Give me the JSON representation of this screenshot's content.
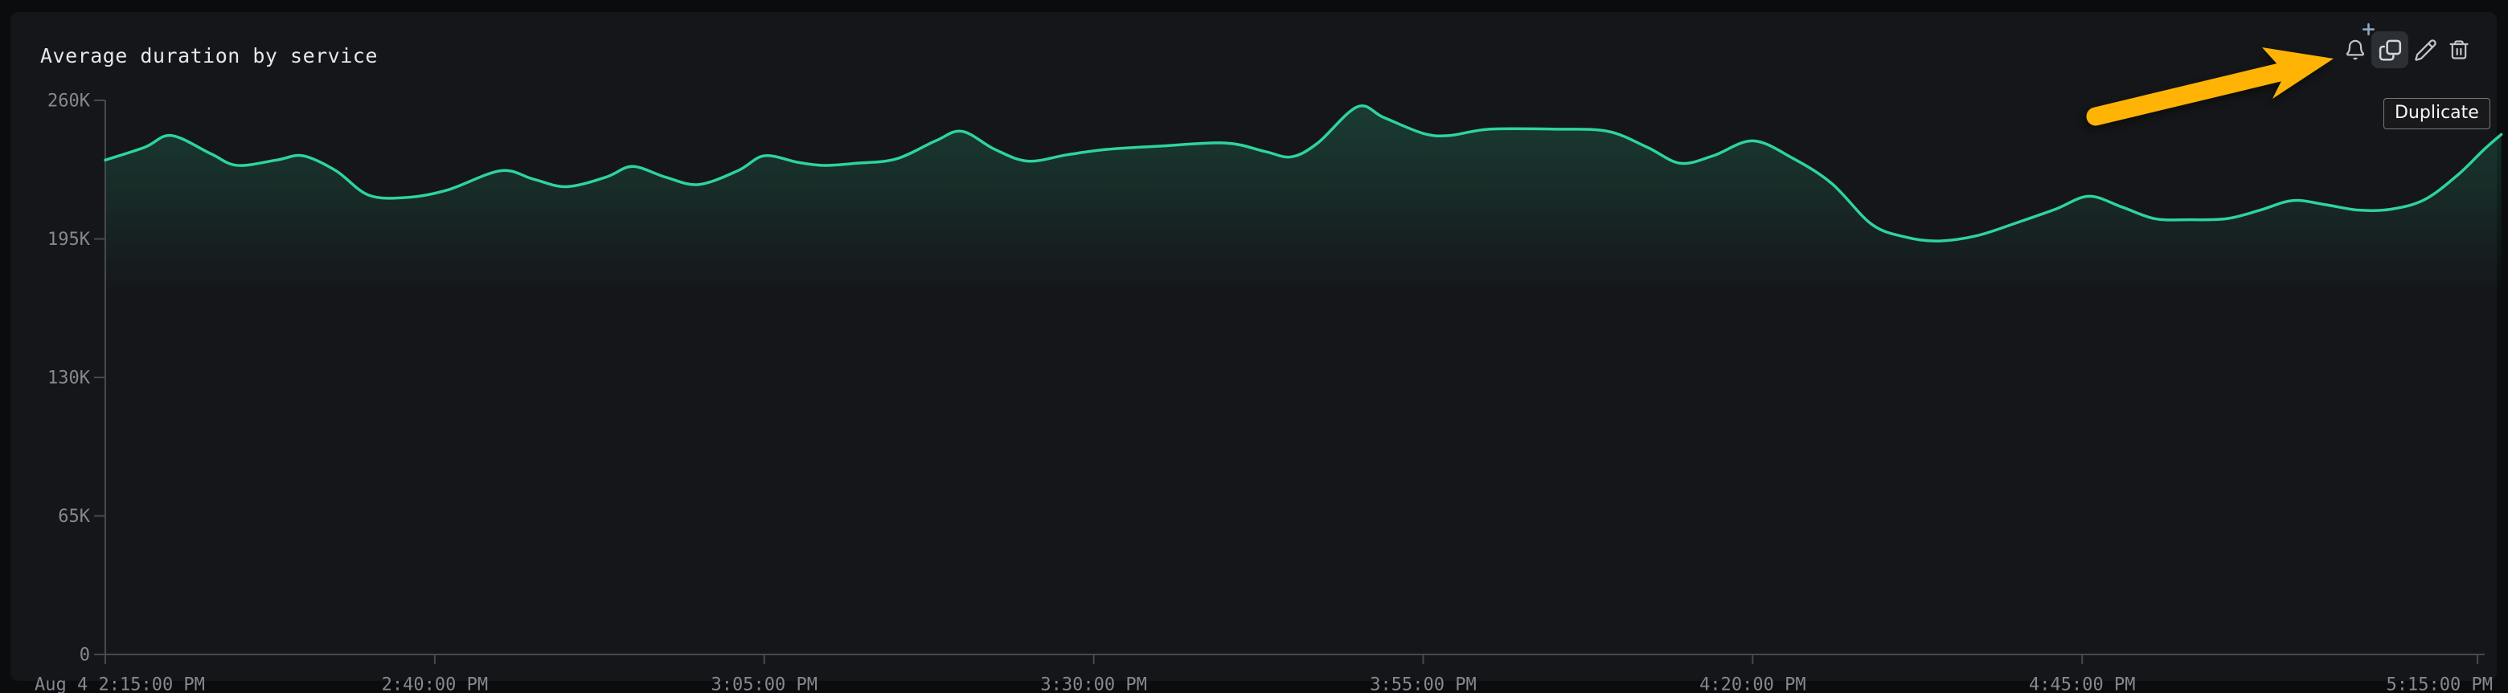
{
  "header": {
    "title": "Average duration by service"
  },
  "toolbar": {
    "tooltip_label": "Duplicate",
    "buttons": [
      "add-monitor",
      "duplicate",
      "edit",
      "delete"
    ],
    "active_button": "duplicate"
  },
  "annotation": {
    "type": "arrow",
    "points_at": "duplicate-button",
    "color": "#ffb405"
  },
  "colors": {
    "outer_background": "#0b0c0e",
    "panel_background": "#151619",
    "line": "#2dd49e",
    "area_fill": "rgba(45,212,158,0.20)",
    "axis": "#46494e",
    "axis_label": "#85888e",
    "title_text": "#e4e6e9",
    "icon": "#bfc4ca",
    "icon_active_bg": "#2c2f34",
    "plus_badge": "#8ba6c6",
    "arrow": "#ffb405",
    "tooltip_bg": "#19191b",
    "tooltip_border": "#77797c"
  },
  "chart_data": {
    "type": "line",
    "title": "Average duration by service",
    "xlabel": "",
    "ylabel": "",
    "grid": false,
    "legend": false,
    "x_unit": "minutes after Aug 4 2:15:00 PM",
    "y_values_in": "thousands",
    "ylim": [
      0,
      260
    ],
    "yticks": [
      {
        "value": 0,
        "label": "0"
      },
      {
        "value": 65,
        "label": "65K"
      },
      {
        "value": 130,
        "label": "130K"
      },
      {
        "value": 195,
        "label": "195K"
      },
      {
        "value": 260,
        "label": "260K"
      }
    ],
    "xticks": [
      {
        "minute": 0,
        "label": "Aug 4 2:15:00 PM"
      },
      {
        "minute": 25,
        "label": "2:40:00 PM"
      },
      {
        "minute": 50,
        "label": "3:05:00 PM"
      },
      {
        "minute": 75,
        "label": "3:30:00 PM"
      },
      {
        "minute": 100,
        "label": "3:55:00 PM"
      },
      {
        "minute": 125,
        "label": "4:20:00 PM"
      },
      {
        "minute": 150,
        "label": "4:45:00 PM"
      },
      {
        "minute": 180,
        "label": "5:15:00 PM"
      }
    ],
    "series": [
      {
        "name": "avg_duration",
        "color": "#2dd49e",
        "points": [
          [
            0,
            232
          ],
          [
            3,
            238
          ],
          [
            5,
            243.5
          ],
          [
            8,
            235
          ],
          [
            10,
            229.5
          ],
          [
            13,
            232
          ],
          [
            15,
            234
          ],
          [
            17.5,
            227
          ],
          [
            20,
            215.5
          ],
          [
            23,
            214.5
          ],
          [
            26,
            218
          ],
          [
            30,
            227
          ],
          [
            32.5,
            223
          ],
          [
            35,
            219.5
          ],
          [
            38,
            224
          ],
          [
            40,
            229
          ],
          [
            42.5,
            224
          ],
          [
            45,
            220.5
          ],
          [
            48,
            227
          ],
          [
            50,
            234
          ],
          [
            52.5,
            231
          ],
          [
            54.5,
            229.5
          ],
          [
            57,
            230.5
          ],
          [
            60,
            232.5
          ],
          [
            63,
            241
          ],
          [
            65,
            245.5
          ],
          [
            67.5,
            237
          ],
          [
            70,
            231.5
          ],
          [
            73,
            234.5
          ],
          [
            76,
            237
          ],
          [
            80,
            238.5
          ],
          [
            85,
            240
          ],
          [
            88,
            236
          ],
          [
            90,
            233.5
          ],
          [
            92,
            240
          ],
          [
            95,
            257
          ],
          [
            97,
            252
          ],
          [
            100,
            244.5
          ],
          [
            102,
            243.5
          ],
          [
            105,
            246.5
          ],
          [
            110,
            246.5
          ],
          [
            114,
            245.5
          ],
          [
            117,
            238
          ],
          [
            119.5,
            230.5
          ],
          [
            122,
            234
          ],
          [
            125,
            241
          ],
          [
            128,
            233
          ],
          [
            131,
            221
          ],
          [
            134,
            202
          ],
          [
            136.5,
            196
          ],
          [
            139,
            194
          ],
          [
            142,
            196.5
          ],
          [
            145,
            202.5
          ],
          [
            148,
            209
          ],
          [
            150.5,
            215
          ],
          [
            153,
            210
          ],
          [
            155.5,
            204.5
          ],
          [
            158,
            204
          ],
          [
            161,
            204.5
          ],
          [
            163.5,
            208.5
          ],
          [
            166,
            213
          ],
          [
            168.5,
            211
          ],
          [
            171,
            208.5
          ],
          [
            173.5,
            209
          ],
          [
            176,
            213.5
          ],
          [
            178.5,
            225
          ],
          [
            180.5,
            237
          ],
          [
            181.8,
            244
          ]
        ]
      }
    ]
  }
}
